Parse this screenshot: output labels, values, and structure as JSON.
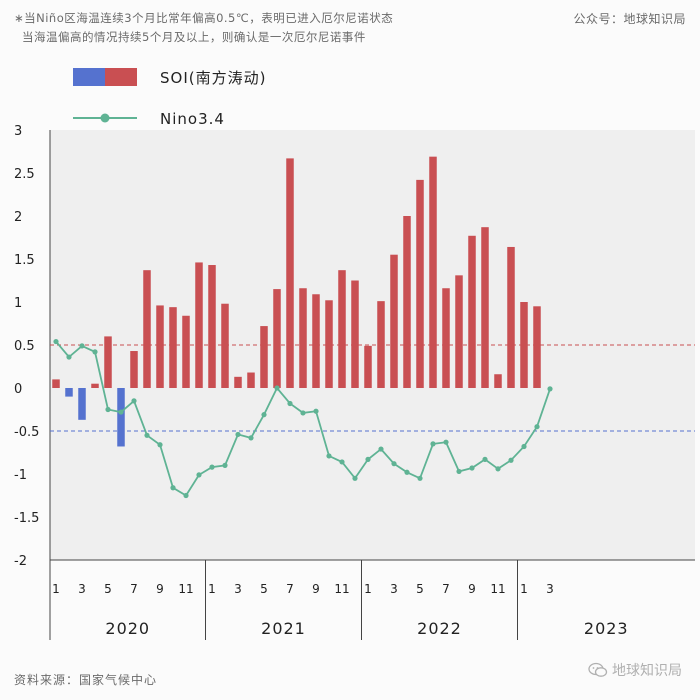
{
  "header": {
    "note_line1": "∗当Niño区海温连续3个月比常年偏高0.5℃，表明已进入厄尔尼诺状态",
    "note_line2": "当海温偏高的情况持续5个月及以上，则确认是一次厄尔尼诺事件",
    "account": "公众号：地球知识局"
  },
  "footer": {
    "source": "资料来源：国家气候中心",
    "brand": "地球知识局",
    "brand_icon": "wechat-icon"
  },
  "colors": {
    "bar_positive": "#c94f52",
    "bar_negative": "#5572cf",
    "line": "#5fb394",
    "threshold_upper": "#c94f52",
    "threshold_lower": "#5572cf",
    "plot_background": "#efefef"
  },
  "chart_data": {
    "type": "bar",
    "ylim": [
      -2,
      3
    ],
    "yticks": [
      3,
      2.5,
      2,
      1.5,
      1,
      0.5,
      0,
      -0.5,
      -1,
      -1.5,
      -2
    ],
    "ytick_labels": [
      "3",
      "2.5",
      "2",
      "1.5",
      "1",
      "0.5",
      "0",
      "-0.5",
      "-1",
      "-1.5",
      "-2"
    ],
    "month_labels": [
      "1",
      "3",
      "5",
      "7",
      "9",
      "11",
      "1",
      "3",
      "5",
      "7",
      "9",
      "11",
      "1",
      "3",
      "5",
      "7",
      "9",
      "11",
      "1",
      "3"
    ],
    "years": [
      "2020",
      "2021",
      "2022",
      "2023"
    ],
    "reference_lines": [
      0.5,
      -0.5
    ],
    "legend": [
      "SOI(南方涛动)",
      "Nino3.4"
    ],
    "series": [
      {
        "name": "SOI(南方涛动)",
        "type": "bar",
        "values": [
          0.1,
          -0.1,
          -0.37,
          0.05,
          0.6,
          -0.68,
          0.43,
          1.37,
          0.96,
          0.94,
          0.84,
          1.46,
          1.43,
          0.98,
          0.13,
          0.18,
          0.72,
          1.15,
          2.67,
          1.16,
          1.09,
          1.02,
          1.37,
          1.25,
          0.49,
          1.01,
          1.55,
          2.0,
          2.42,
          2.69,
          1.16,
          1.31,
          1.77,
          1.87,
          0.16,
          1.64,
          1.0,
          0.95
        ]
      },
      {
        "name": "Nino3.4",
        "type": "line",
        "values": [
          0.54,
          0.36,
          0.49,
          0.42,
          -0.25,
          -0.28,
          -0.15,
          -0.55,
          -0.66,
          -1.16,
          -1.25,
          -1.01,
          -0.92,
          -0.9,
          -0.54,
          -0.58,
          -0.31,
          0.0,
          -0.18,
          -0.29,
          -0.27,
          -0.79,
          -0.86,
          -1.05,
          -0.83,
          -0.71,
          -0.88,
          -0.98,
          -1.05,
          -0.65,
          -0.63,
          -0.97,
          -0.93,
          -0.83,
          -0.94,
          -0.84,
          -0.68,
          -0.45,
          -0.01
        ]
      }
    ]
  }
}
